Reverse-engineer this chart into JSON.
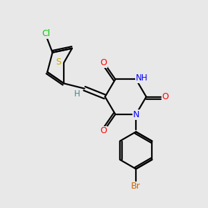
{
  "bg_color": "#e8e8e8",
  "bond_color": "#000000",
  "atom_colors": {
    "O": "#ff0000",
    "N": "#0000ff",
    "S": "#ccaa00",
    "Cl": "#00cc00",
    "Br": "#cc6600",
    "H": "#448888",
    "C": "#000000"
  },
  "figsize": [
    3.0,
    3.0
  ],
  "dpi": 100,
  "lw": 1.6
}
